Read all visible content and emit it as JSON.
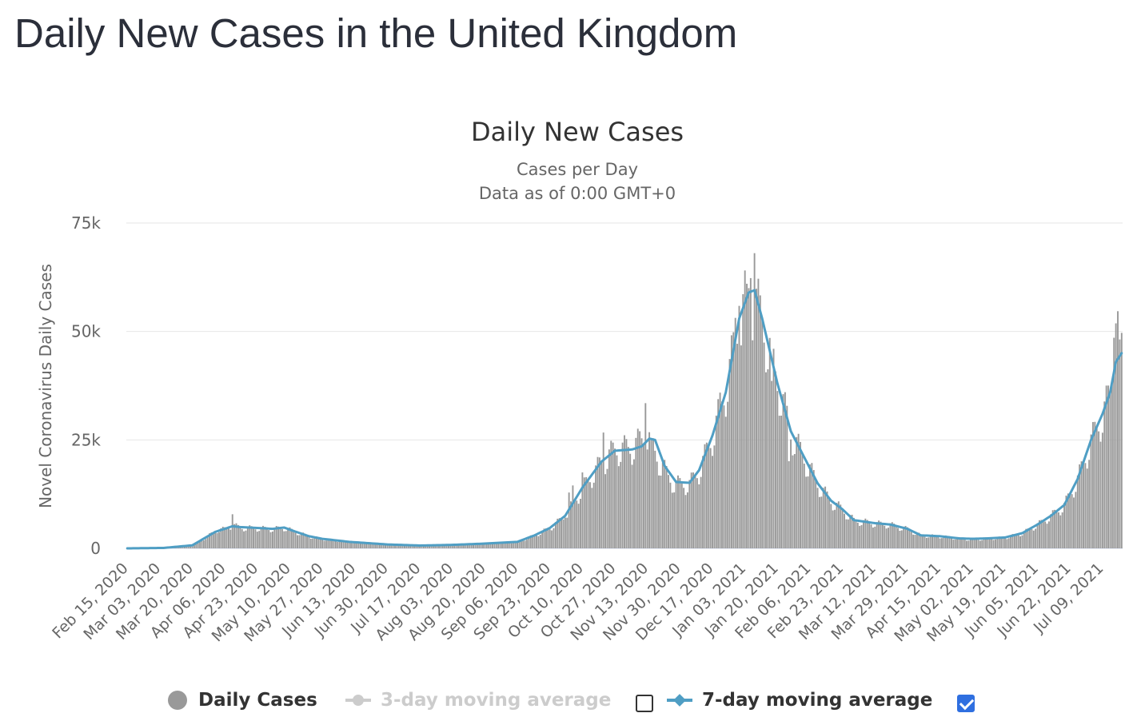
{
  "page": {
    "title": "Daily New Cases in the United Kingdom"
  },
  "colors": {
    "bars": "#999999",
    "ma7": "#4f9ec4",
    "ma3_disabled": "#cccccc",
    "grid": "#e6e6e6",
    "axis_line": "#ccd6eb",
    "checkbox_checked": "#2f6fe0"
  },
  "legend": {
    "daily_cases": "Daily Cases",
    "ma3": "3-day moving average",
    "ma7": "7-day moving average",
    "ma3_checked": false,
    "ma7_checked": true
  },
  "chart_data": {
    "type": "bar",
    "title": "Daily New Cases",
    "subtitle_1": "Cases per Day",
    "subtitle_2": "Data as of 0:00 GMT+0",
    "ylabel": "Novel Coronavirus Daily Cases",
    "xlabel": "",
    "ylim": [
      0,
      75000
    ],
    "yticks": [
      0,
      25000,
      50000,
      75000
    ],
    "ytick_labels": [
      "0",
      "25k",
      "50k",
      "75k"
    ],
    "x_start": "2020-02-15",
    "x_end": "2021-07-19",
    "xtick_labels": [
      "Feb 15, 2020",
      "Mar 03, 2020",
      "Mar 20, 2020",
      "Apr 06, 2020",
      "Apr 23, 2020",
      "May 10, 2020",
      "May 27, 2020",
      "Jun 13, 2020",
      "Jun 30, 2020",
      "Jul 17, 2020",
      "Aug 03, 2020",
      "Aug 20, 2020",
      "Sep 06, 2020",
      "Sep 23, 2020",
      "Oct 10, 2020",
      "Oct 27, 2020",
      "Nov 13, 2020",
      "Nov 30, 2020",
      "Dec 17, 2020",
      "Jan 03, 2021",
      "Jan 20, 2021",
      "Feb 06, 2021",
      "Feb 23, 2021",
      "Mar 12, 2021",
      "Mar 29, 2021",
      "Apr 15, 2021",
      "May 02, 2021",
      "May 19, 2021",
      "Jun 05, 2021",
      "Jun 22, 2021",
      "Jul 09, 2021"
    ],
    "grid": true,
    "legend_position": "bottom",
    "series": [
      {
        "name": "Daily Cases",
        "type": "bar",
        "anchors": [
          [
            "2020-02-15",
            0
          ],
          [
            "2020-03-01",
            40
          ],
          [
            "2020-03-10",
            100
          ],
          [
            "2020-03-20",
            700
          ],
          [
            "2020-03-27",
            2500
          ],
          [
            "2020-04-02",
            4300
          ],
          [
            "2020-04-06",
            4500
          ],
          [
            "2020-04-10",
            5500
          ],
          [
            "2020-04-14",
            4800
          ],
          [
            "2020-04-23",
            4700
          ],
          [
            "2020-05-01",
            4500
          ],
          [
            "2020-05-07",
            4800
          ],
          [
            "2020-05-12",
            4000
          ],
          [
            "2020-05-20",
            2800
          ],
          [
            "2020-05-27",
            2200
          ],
          [
            "2020-06-10",
            1500
          ],
          [
            "2020-06-30",
            900
          ],
          [
            "2020-07-17",
            650
          ],
          [
            "2020-08-03",
            800
          ],
          [
            "2020-08-20",
            1100
          ],
          [
            "2020-09-06",
            1500
          ],
          [
            "2020-09-15",
            3000
          ],
          [
            "2020-09-23",
            4700
          ],
          [
            "2020-10-01",
            7500
          ],
          [
            "2020-10-10",
            14000
          ],
          [
            "2020-10-20",
            20000
          ],
          [
            "2020-10-27",
            23000
          ],
          [
            "2020-11-05",
            23500
          ],
          [
            "2020-11-13",
            26500
          ],
          [
            "2020-11-20",
            19500
          ],
          [
            "2020-11-27",
            15000
          ],
          [
            "2020-12-05",
            15000
          ],
          [
            "2020-12-10",
            18000
          ],
          [
            "2020-12-17",
            26000
          ],
          [
            "2020-12-24",
            37000
          ],
          [
            "2020-12-31",
            53000
          ],
          [
            "2021-01-05",
            60000
          ],
          [
            "2021-01-09",
            57000
          ],
          [
            "2021-01-15",
            48000
          ],
          [
            "2021-01-20",
            39000
          ],
          [
            "2021-01-27",
            27000
          ],
          [
            "2021-02-03",
            21000
          ],
          [
            "2021-02-10",
            15000
          ],
          [
            "2021-02-17",
            11000
          ],
          [
            "2021-02-23",
            9000
          ],
          [
            "2021-03-01",
            6500
          ],
          [
            "2021-03-12",
            5800
          ],
          [
            "2021-03-20",
            5500
          ],
          [
            "2021-03-29",
            4500
          ],
          [
            "2021-04-05",
            3000
          ],
          [
            "2021-04-15",
            2800
          ],
          [
            "2021-04-25",
            2300
          ],
          [
            "2021-05-02",
            2000
          ],
          [
            "2021-05-10",
            2300
          ],
          [
            "2021-05-19",
            2500
          ],
          [
            "2021-05-28",
            3500
          ],
          [
            "2021-06-05",
            5500
          ],
          [
            "2021-06-12",
            7500
          ],
          [
            "2021-06-19",
            10000
          ],
          [
            "2021-06-26",
            16000
          ],
          [
            "2021-07-03",
            25000
          ],
          [
            "2021-07-09",
            31000
          ],
          [
            "2021-07-13",
            36000
          ],
          [
            "2021-07-16",
            50000
          ],
          [
            "2021-07-19",
            46000
          ]
        ],
        "spikes": [
          [
            "2020-04-10",
            7860
          ],
          [
            "2020-10-01",
            7100
          ],
          [
            "2020-10-03",
            12870
          ],
          [
            "2020-10-05",
            14500
          ],
          [
            "2020-10-10",
            17500
          ],
          [
            "2020-10-21",
            26700
          ],
          [
            "2020-11-12",
            33470
          ],
          [
            "2020-11-15",
            24950
          ],
          [
            "2020-12-21",
            35900
          ],
          [
            "2020-12-29",
            53130
          ],
          [
            "2020-12-31",
            55900
          ],
          [
            "2021-01-04",
            61000
          ],
          [
            "2021-01-06",
            62300
          ],
          [
            "2021-01-08",
            68050
          ],
          [
            "2021-01-17",
            38600
          ],
          [
            "2021-01-26",
            20090
          ],
          [
            "2021-07-15",
            48550
          ],
          [
            "2021-07-16",
            51870
          ],
          [
            "2021-07-17",
            54670
          ],
          [
            "2021-07-18",
            48160
          ]
        ]
      },
      {
        "name": "3-day moving average",
        "type": "line",
        "visible": false
      },
      {
        "name": "7-day moving average",
        "type": "line",
        "visible": true,
        "points": [
          [
            "2020-02-15",
            0
          ],
          [
            "2020-03-05",
            100
          ],
          [
            "2020-03-20",
            700
          ],
          [
            "2020-03-27",
            2500
          ],
          [
            "2020-04-01",
            3800
          ],
          [
            "2020-04-06",
            4500
          ],
          [
            "2020-04-10",
            5100
          ],
          [
            "2020-04-14",
            4900
          ],
          [
            "2020-04-23",
            4700
          ],
          [
            "2020-05-01",
            4500
          ],
          [
            "2020-05-07",
            4800
          ],
          [
            "2020-05-12",
            4000
          ],
          [
            "2020-05-20",
            2800
          ],
          [
            "2020-05-27",
            2200
          ],
          [
            "2020-06-10",
            1500
          ],
          [
            "2020-06-30",
            900
          ],
          [
            "2020-07-17",
            650
          ],
          [
            "2020-08-03",
            800
          ],
          [
            "2020-08-20",
            1100
          ],
          [
            "2020-09-06",
            1500
          ],
          [
            "2020-09-15",
            3000
          ],
          [
            "2020-09-23",
            4700
          ],
          [
            "2020-10-01",
            7500
          ],
          [
            "2020-10-10",
            14000
          ],
          [
            "2020-10-20",
            20000
          ],
          [
            "2020-10-27",
            22500
          ],
          [
            "2020-11-05",
            22800
          ],
          [
            "2020-11-10",
            23500
          ],
          [
            "2020-11-14",
            25300
          ],
          [
            "2020-11-17",
            25000
          ],
          [
            "2020-11-22",
            19000
          ],
          [
            "2020-11-28",
            15300
          ],
          [
            "2020-12-05",
            15100
          ],
          [
            "2020-12-10",
            18000
          ],
          [
            "2020-12-17",
            26000
          ],
          [
            "2020-12-24",
            36000
          ],
          [
            "2020-12-31",
            53000
          ],
          [
            "2021-01-05",
            59000
          ],
          [
            "2021-01-08",
            59500
          ],
          [
            "2021-01-12",
            53000
          ],
          [
            "2021-01-20",
            38000
          ],
          [
            "2021-01-27",
            27000
          ],
          [
            "2021-02-03",
            21000
          ],
          [
            "2021-02-10",
            15000
          ],
          [
            "2021-02-17",
            11000
          ],
          [
            "2021-02-23",
            9000
          ],
          [
            "2021-03-01",
            6500
          ],
          [
            "2021-03-12",
            5800
          ],
          [
            "2021-03-20",
            5500
          ],
          [
            "2021-03-29",
            4500
          ],
          [
            "2021-04-05",
            3000
          ],
          [
            "2021-04-15",
            2800
          ],
          [
            "2021-04-25",
            2300
          ],
          [
            "2021-05-02",
            2200
          ],
          [
            "2021-05-10",
            2300
          ],
          [
            "2021-05-19",
            2500
          ],
          [
            "2021-05-28",
            3500
          ],
          [
            "2021-06-05",
            5500
          ],
          [
            "2021-06-12",
            7500
          ],
          [
            "2021-06-19",
            10000
          ],
          [
            "2021-06-26",
            16000
          ],
          [
            "2021-07-03",
            25000
          ],
          [
            "2021-07-09",
            31000
          ],
          [
            "2021-07-13",
            36000
          ],
          [
            "2021-07-16",
            43000
          ],
          [
            "2021-07-19",
            45000
          ]
        ]
      }
    ]
  }
}
